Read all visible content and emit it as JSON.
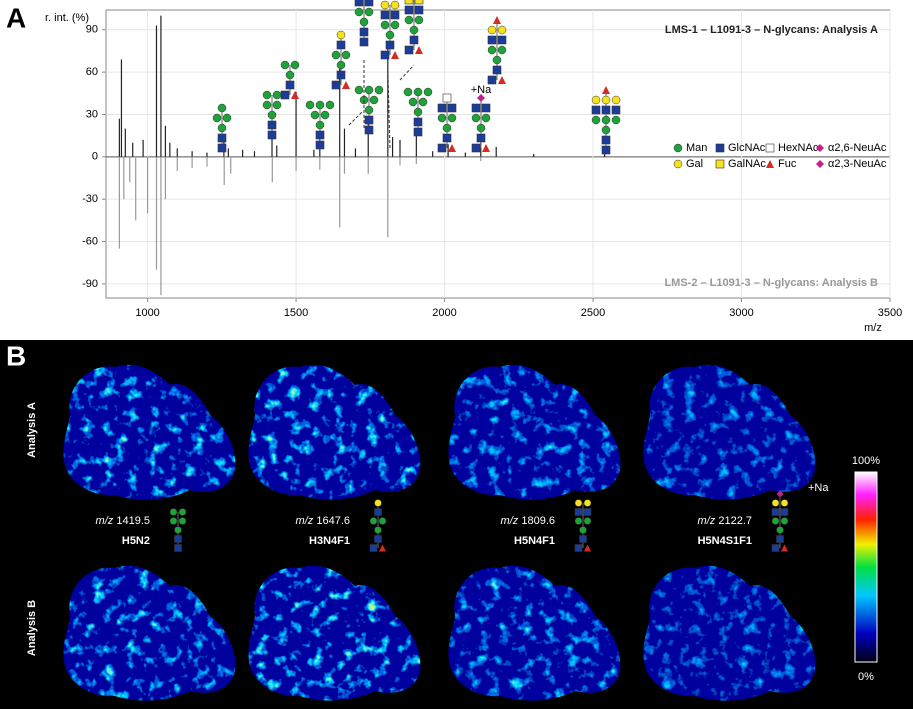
{
  "panel_labels": {
    "a": "A",
    "b": "B"
  },
  "chart_data": {
    "type": "mirror-stem",
    "y_label": "r. int. (%)",
    "x_label": "m/z",
    "xlim": [
      860,
      3500
    ],
    "xticks": [
      1000,
      1500,
      2000,
      2500,
      3000,
      3500
    ],
    "ylim": [
      -100,
      104
    ],
    "yticks": [
      -90,
      -60,
      -30,
      0,
      30,
      60,
      90
    ],
    "grid": true,
    "series": [
      {
        "name": "LMS-1 – L1091-3 – N-glycans: Analysis A",
        "color": "#222222",
        "x": [
          905,
          912,
          925,
          950,
          985,
          1030,
          1045,
          1060,
          1075,
          1100,
          1150,
          1200,
          1257,
          1272,
          1320,
          1360,
          1419,
          1435,
          1500,
          1560,
          1580,
          1647,
          1663,
          1700,
          1743,
          1809,
          1825,
          1850,
          1905,
          1960,
          2012,
          2070,
          2122,
          2174,
          2300,
          2539
        ],
        "values": [
          27,
          69,
          20,
          10,
          12,
          93,
          100,
          22,
          10,
          6,
          4,
          3,
          15,
          6,
          5,
          4,
          24,
          8,
          46,
          5,
          14,
          63,
          20,
          6,
          28,
          82,
          14,
          12,
          16,
          4,
          9,
          3,
          10,
          7,
          2,
          4
        ]
      },
      {
        "name": "LMS-2 – L1091-3 – N-glycans: Analysis B",
        "color": "#999999",
        "x": [
          905,
          920,
          940,
          960,
          1000,
          1030,
          1045,
          1060,
          1100,
          1150,
          1200,
          1258,
          1280,
          1420,
          1500,
          1580,
          1647,
          1663,
          1743,
          1809,
          1850,
          1905,
          2122
        ],
        "values": [
          -65,
          -30,
          -18,
          -45,
          -40,
          -80,
          -98,
          -30,
          -10,
          -8,
          -7,
          -20,
          -12,
          -18,
          -10,
          -9,
          -50,
          -12,
          -12,
          -57,
          -6,
          -5,
          -3
        ]
      }
    ],
    "annotations": [
      "+Na"
    ]
  },
  "symbol_legend": [
    "Man",
    "GlcNAc",
    "HexNAc",
    "α2,6-NeuAc",
    "Gal",
    "GalNAc",
    "Fuc",
    "α2,3-NeuAc"
  ],
  "imaging": {
    "row_labels": [
      "Analysis A",
      "Analysis B"
    ],
    "ions": [
      {
        "mz_label": "m/z",
        "mz": "1419.5",
        "name": "H5N2"
      },
      {
        "mz_label": "m/z",
        "mz": "1647.6",
        "name": "H3N4F1"
      },
      {
        "mz_label": "m/z",
        "mz": "1809.6",
        "name": "H5N4F1"
      },
      {
        "mz_label": "m/z",
        "mz": "2122.7",
        "name": "H5N4S1F1"
      }
    ],
    "sodium_label": "+Na",
    "colorbar": {
      "max_label": "100%",
      "min_label": "0%"
    }
  }
}
